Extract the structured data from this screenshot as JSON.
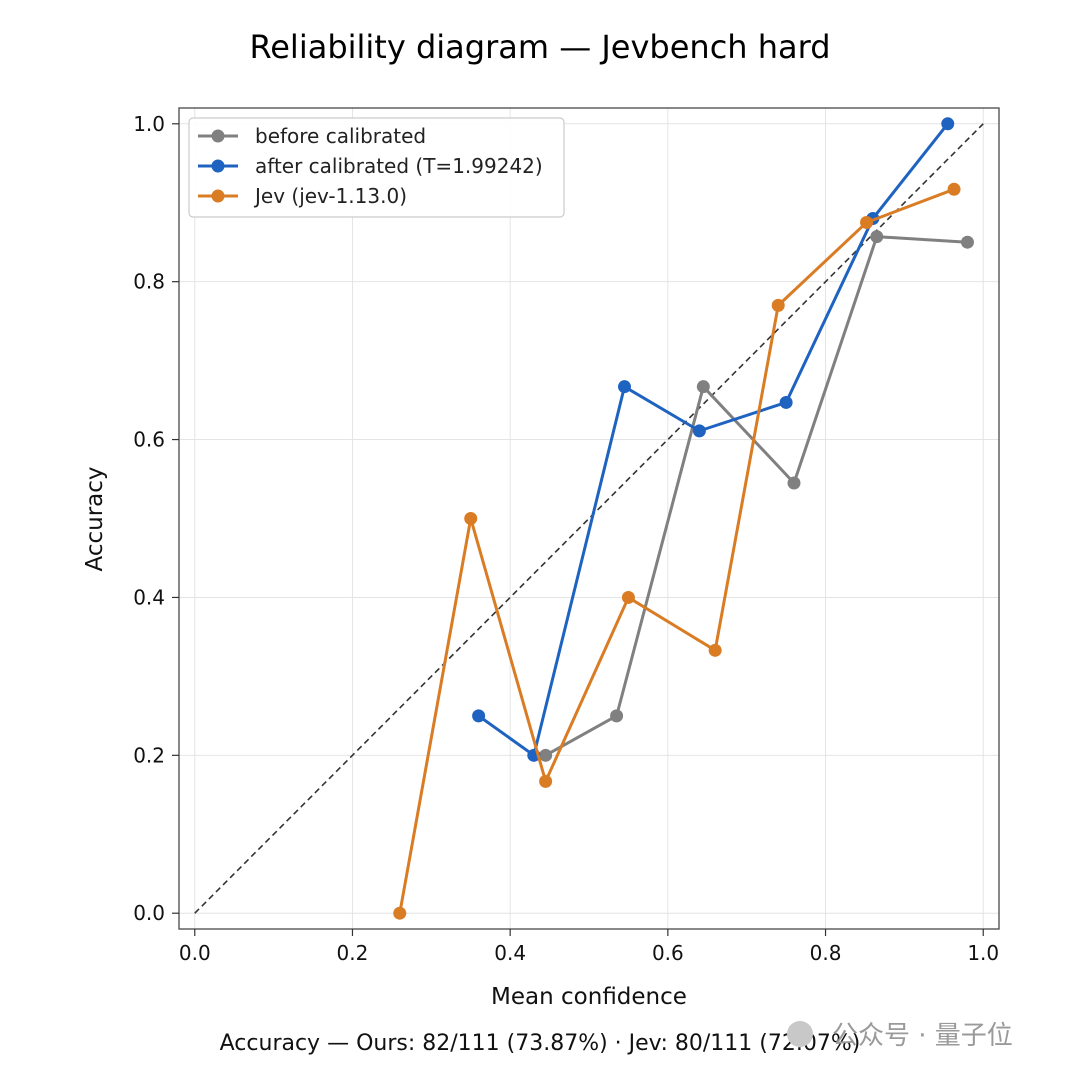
{
  "chart_data": {
    "type": "line",
    "title": "Reliability diagram — Jevbench hard",
    "xlabel": "Mean confidence",
    "ylabel": "Accuracy",
    "xlim": [
      -0.02,
      1.02
    ],
    "ylim": [
      -0.02,
      1.02
    ],
    "xticks": [
      "0.0",
      "0.2",
      "0.4",
      "0.6",
      "0.8",
      "1.0"
    ],
    "yticks": [
      "0.0",
      "0.2",
      "0.4",
      "0.6",
      "0.8",
      "1.0"
    ],
    "grid": true,
    "legend_position": "top-left",
    "diagonal_reference": true,
    "series": [
      {
        "name": "before calibrated",
        "color": "#808080",
        "x": [
          0.445,
          0.535,
          0.645,
          0.76,
          0.865,
          0.98
        ],
        "y": [
          0.2,
          0.25,
          0.667,
          0.545,
          0.857,
          0.85
        ]
      },
      {
        "name": "after calibrated (T=1.99242)",
        "color": "#1f63c1",
        "x": [
          0.36,
          0.43,
          0.545,
          0.64,
          0.75,
          0.86,
          0.955
        ],
        "y": [
          0.25,
          0.2,
          0.667,
          0.611,
          0.647,
          0.88,
          1.0
        ]
      },
      {
        "name": "Jev (jev-1.13.0)",
        "color": "#d97c24",
        "x": [
          0.26,
          0.35,
          0.445,
          0.55,
          0.66,
          0.74,
          0.852,
          0.963
        ],
        "y": [
          0.0,
          0.5,
          0.167,
          0.4,
          0.333,
          0.77,
          0.875,
          0.917
        ]
      }
    ],
    "footer": "Accuracy — Ours: 82/111 (73.87%) · Jev: 80/111 (72.07%)"
  },
  "watermark": "公众号 · 量子位"
}
